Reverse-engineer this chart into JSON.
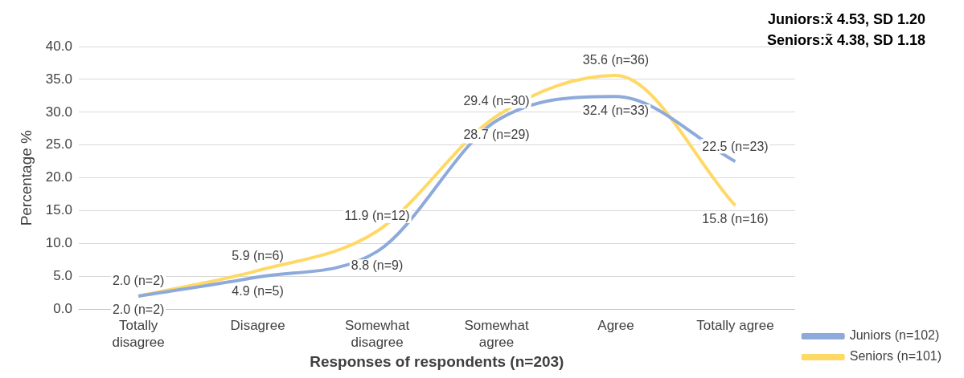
{
  "chart_data": {
    "type": "line",
    "xlabel": "Responses of respondents (n=203)",
    "ylabel": "Percentage %",
    "categories": [
      "Totally disagree",
      "Disagree",
      "Somewhat disagree",
      "Somewhat agree",
      "Agree",
      "Totally agree"
    ],
    "series": [
      {
        "name": "Juniors (n=102)",
        "color": "#8eaadb",
        "values": [
          2.0,
          4.9,
          8.8,
          28.7,
          32.4,
          22.5
        ],
        "value_labels": [
          "2.0 (n=2)",
          "4.9 (n=5)",
          "8.8 (n=9)",
          "28.7 (n=29)",
          "32.4 (n=33)",
          "22.5 (n=23)"
        ]
      },
      {
        "name": "Seniors (n=101)",
        "color": "#ffd966",
        "values": [
          2.0,
          5.9,
          11.9,
          29.4,
          35.6,
          15.8
        ],
        "value_labels": [
          "2.0 (n=2)",
          "5.9 (n=6)",
          "11.9 (n=12)",
          "29.4 (n=30)",
          "35.6 (n=36)",
          "15.8 (n=16)"
        ]
      }
    ],
    "ylim": [
      0,
      40
    ],
    "yticks": [
      {
        "value": 0,
        "label": "0.0"
      },
      {
        "value": 5,
        "label": "5.0"
      },
      {
        "value": 10,
        "label": "10.0"
      },
      {
        "value": 15,
        "label": "15.0"
      },
      {
        "value": 20,
        "label": "20.0"
      },
      {
        "value": 25,
        "label": "25.0"
      },
      {
        "value": 30,
        "label": "30.0"
      },
      {
        "value": 35,
        "label": "35.0"
      },
      {
        "value": 40,
        "label": "40.0"
      }
    ],
    "annotations": [
      "Juniors:x̃ 4.53, SD 1.20",
      "Seniors:x̃ 4.38, SD 1.18"
    ],
    "grid": "y",
    "legend": "bottom right",
    "marker": "none",
    "line_style": "solid"
  }
}
